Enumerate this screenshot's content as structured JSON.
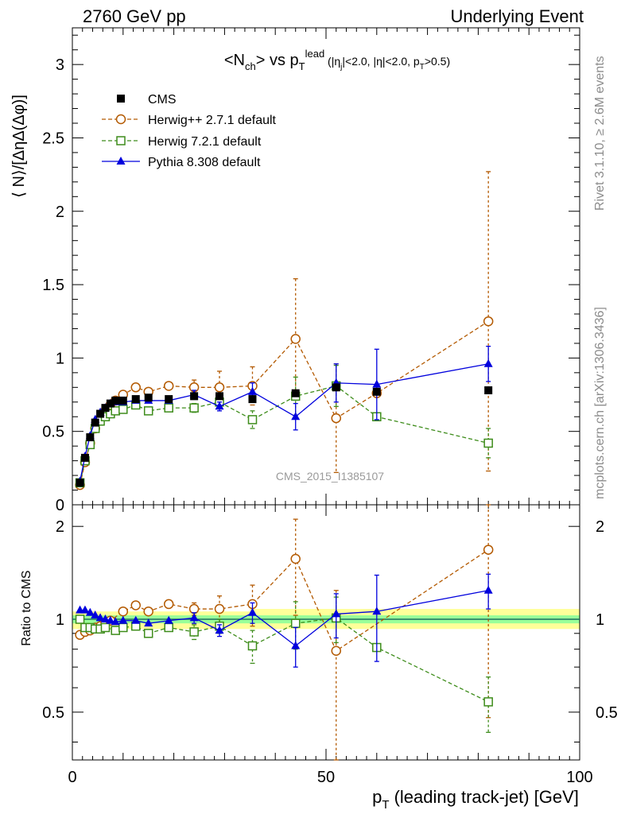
{
  "header": {
    "left": "2760 GeV pp",
    "right": "Underlying Event"
  },
  "side_labels": {
    "rivet": "Rivet 3.1.10, ≥ 2.6M events",
    "mcplots": "mcplots.cern.ch [arXiv:1306.3436]"
  },
  "watermark": "CMS_2015_I1385107",
  "colors": {
    "cms": "#000000",
    "herwig_old": "#b35900",
    "herwig_new": "#3d8c1a",
    "pythia": "#0000dd",
    "band_outer": "#ffff99",
    "band_inner": "#99ff99",
    "ref_line": "#1f6f5f"
  },
  "chart_data": [
    {
      "type": "scatter",
      "panel": "main",
      "title": "<N_ch> vs p_T^lead (|η_j|<2.0, |η|<2.0, p_T>0.5)",
      "title_parts": {
        "a": "<N",
        "b": "ch",
        "c": "> vs p",
        "d": "T",
        "e": "lead",
        "f": " (|η",
        "g": "j",
        "h": "|<2.0, |η|<2.0, p",
        "i": "T",
        "j": ">0.5)"
      },
      "ylabel": "⟨ N⟩/[ΔηΔ(Δφ)]",
      "xlim": [
        0,
        100
      ],
      "ylim": [
        0,
        3.25
      ],
      "y_ticks": [
        0,
        0.5,
        1,
        1.5,
        2,
        2.5,
        3
      ],
      "y_tick_labels": [
        "0",
        "0.5",
        "1",
        "1.5",
        "2",
        "2.5",
        "3"
      ],
      "legend_position": "top-left",
      "series": [
        {
          "name": "CMS",
          "key": "cms",
          "style": "square-filled",
          "x": [
            1.5,
            2.5,
            3.5,
            4.5,
            5.5,
            6.5,
            7.5,
            8.5,
            10,
            12.5,
            15,
            19,
            24,
            29,
            35.5,
            44,
            52,
            60,
            82
          ],
          "y": [
            0.15,
            0.32,
            0.46,
            0.56,
            0.62,
            0.66,
            0.69,
            0.71,
            0.71,
            0.72,
            0.73,
            0.72,
            0.74,
            0.74,
            0.72,
            0.76,
            0.8,
            0.77,
            0.78
          ]
        },
        {
          "name": "Herwig++ 2.7.1 default",
          "key": "herwig_old",
          "style": "circle-open-dashed",
          "x": [
            1.5,
            2.5,
            3.5,
            4.5,
            5.5,
            6.5,
            7.5,
            8.5,
            10,
            12.5,
            15,
            19,
            24,
            29,
            35.5,
            44,
            52,
            60,
            82
          ],
          "y": [
            0.135,
            0.29,
            0.42,
            0.52,
            0.59,
            0.64,
            0.68,
            0.71,
            0.75,
            0.8,
            0.77,
            0.81,
            0.8,
            0.8,
            0.81,
            1.13,
            0.59,
            0.76,
            1.25
          ],
          "yerr": [
            0,
            0,
            0,
            0,
            0,
            0,
            0,
            0,
            0,
            0,
            0,
            0,
            0.05,
            0.11,
            0.13,
            0.41,
            0.37,
            0,
            1.02
          ]
        },
        {
          "name": "Herwig 7.2.1 default",
          "key": "herwig_new",
          "style": "square-open-dashed",
          "x": [
            1.5,
            2.5,
            3.5,
            4.5,
            5.5,
            6.5,
            7.5,
            8.5,
            10,
            12.5,
            15,
            19,
            24,
            29,
            35.5,
            44,
            52,
            60,
            82
          ],
          "y": [
            0.15,
            0.3,
            0.41,
            0.52,
            0.57,
            0.6,
            0.62,
            0.64,
            0.65,
            0.68,
            0.64,
            0.66,
            0.66,
            0.7,
            0.58,
            0.74,
            0.81,
            0.6,
            0.42
          ],
          "yerr": [
            0,
            0,
            0,
            0,
            0,
            0,
            0,
            0,
            0,
            0,
            0,
            0,
            0.03,
            0.04,
            0.06,
            0.13,
            0.14,
            0,
            0.1
          ]
        },
        {
          "name": "Pythia 8.308 default",
          "key": "pythia",
          "style": "triangle-filled-solid",
          "x": [
            1.5,
            2.5,
            3.5,
            4.5,
            5.5,
            6.5,
            7.5,
            8.5,
            10,
            12.5,
            15,
            19,
            24,
            29,
            35.5,
            44,
            52,
            60,
            82
          ],
          "y": [
            0.16,
            0.33,
            0.47,
            0.58,
            0.63,
            0.66,
            0.69,
            0.7,
            0.7,
            0.71,
            0.71,
            0.71,
            0.75,
            0.67,
            0.77,
            0.6,
            0.83,
            0.82,
            0.96
          ],
          "yerr": [
            0,
            0,
            0,
            0,
            0,
            0,
            0,
            0,
            0,
            0,
            0,
            0,
            0.03,
            0.03,
            0.06,
            0.09,
            0.13,
            0.24,
            0.12
          ]
        }
      ]
    },
    {
      "type": "scatter",
      "panel": "ratio",
      "ylabel": "Ratio to CMS",
      "xlabel": "p_T (leading track-jet) [GeV]",
      "xlabel_parts": {
        "a": "p",
        "b": "T",
        "c": " (leading track-jet) [GeV]"
      },
      "xlim": [
        0,
        100
      ],
      "ylim": [
        0.35,
        2.35
      ],
      "log_y": true,
      "x_ticks": [
        0,
        50,
        100
      ],
      "x_tick_labels": [
        "0",
        "50",
        "100"
      ],
      "y_ticks": [
        0.5,
        1,
        2
      ],
      "y_tick_labels": [
        "0.5",
        "1",
        "2"
      ],
      "band": {
        "inner": [
          0.97,
          1.03
        ],
        "outer": [
          0.93,
          1.08
        ],
        "x_outer_step": 35
      },
      "series": [
        {
          "name": "Herwig++ 2.7.1 default",
          "key": "herwig_old",
          "style": "circle-open-dashed",
          "x": [
            1.5,
            2.5,
            3.5,
            4.5,
            5.5,
            6.5,
            7.5,
            10,
            12.5,
            15,
            19,
            24,
            29,
            35.5,
            44,
            52,
            82
          ],
          "y": [
            0.89,
            0.91,
            0.92,
            0.94,
            0.95,
            0.97,
            0.99,
            1.06,
            1.11,
            1.06,
            1.12,
            1.08,
            1.08,
            1.12,
            1.57,
            0.79,
            1.68
          ],
          "yerr": [
            0,
            0,
            0,
            0,
            0,
            0,
            0,
            0,
            0,
            0,
            0.03,
            0.05,
            0.11,
            0.17,
            0.54,
            0.45,
            1.2
          ]
        },
        {
          "name": "Herwig 7.2.1 default",
          "key": "herwig_new",
          "style": "square-open-dashed",
          "x": [
            1.5,
            2.5,
            3.5,
            4.5,
            5.5,
            6.5,
            8.5,
            10,
            12.5,
            15,
            19,
            24,
            29,
            35.5,
            44,
            52,
            60,
            82
          ],
          "y": [
            1.0,
            0.94,
            0.94,
            0.93,
            0.93,
            0.94,
            0.92,
            0.94,
            0.95,
            0.9,
            0.94,
            0.91,
            0.95,
            0.82,
            0.97,
            1.01,
            0.81,
            0.54
          ],
          "yerr": [
            0,
            0,
            0,
            0,
            0,
            0,
            0,
            0,
            0,
            0,
            0,
            0.05,
            0.05,
            0.1,
            0.17,
            0.17,
            0,
            0.11
          ]
        },
        {
          "name": "Pythia 8.308 default",
          "key": "pythia",
          "style": "triangle-filled-solid",
          "x": [
            1.5,
            2.5,
            3.5,
            4.5,
            5.5,
            6.5,
            7.5,
            8.5,
            10,
            12.5,
            15,
            19,
            24,
            29,
            35.5,
            44,
            52,
            60,
            82
          ],
          "y": [
            1.07,
            1.07,
            1.05,
            1.03,
            1.01,
            1.0,
            0.99,
            0.98,
            0.99,
            0.99,
            0.97,
            0.99,
            1.01,
            0.92,
            1.05,
            0.82,
            1.04,
            1.06,
            1.24
          ],
          "yerr": [
            0,
            0,
            0,
            0,
            0,
            0,
            0,
            0,
            0,
            0,
            0,
            0,
            0.04,
            0.04,
            0.08,
            0.12,
            0.17,
            0.33,
            0.16
          ]
        }
      ]
    }
  ]
}
